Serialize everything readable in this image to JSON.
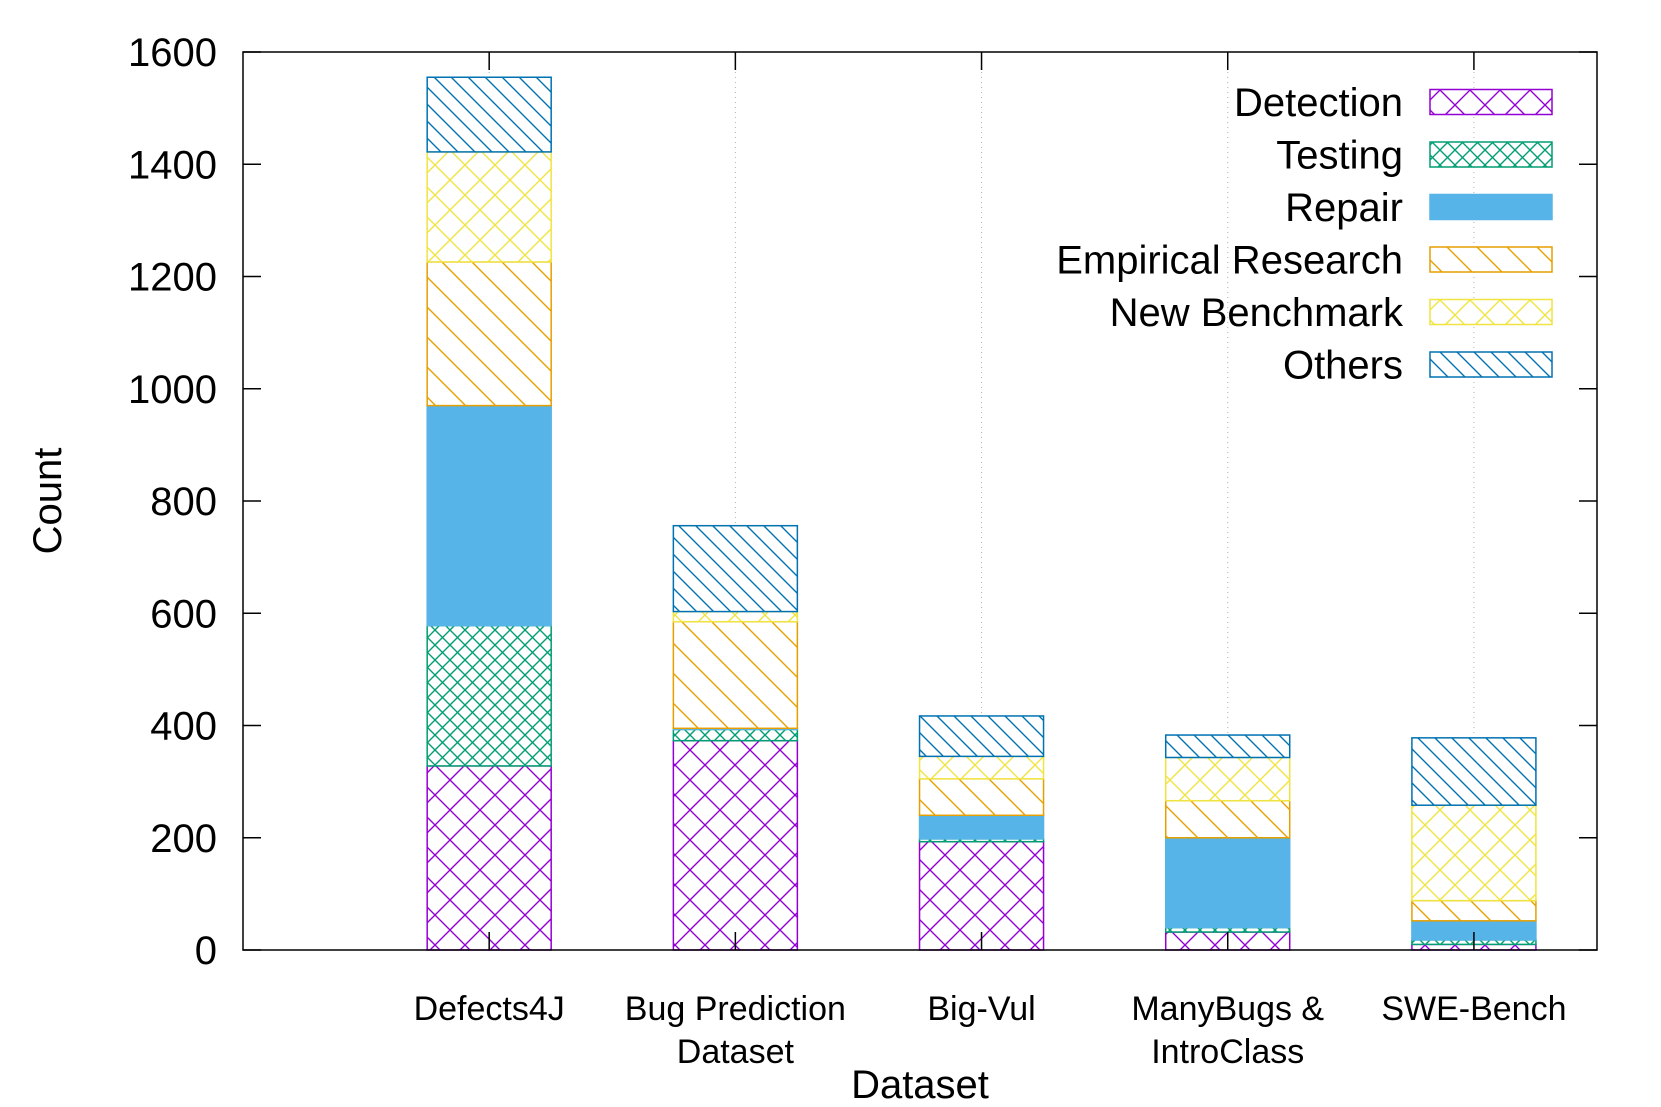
{
  "chart_data": {
    "type": "bar",
    "stacked": true,
    "title": "",
    "xlabel": "Dataset",
    "ylabel": "Count",
    "ylim": [
      0,
      1600
    ],
    "yticks": [
      0,
      200,
      400,
      600,
      800,
      1000,
      1200,
      1400,
      1600
    ],
    "grid": "x-only-dotted",
    "legend_position": "top-right",
    "categories": [
      [
        "Defects4J"
      ],
      [
        "Bug Prediction",
        "Dataset"
      ],
      [
        "Big-Vul"
      ],
      [
        "ManyBugs &",
        "IntroClass"
      ],
      [
        "SWE-Bench"
      ]
    ],
    "series": [
      {
        "name": "Detection",
        "color": "#9400d3",
        "pattern": "crosshatch",
        "values": [
          328,
          373,
          193,
          32,
          10
        ]
      },
      {
        "name": "Testing",
        "color": "#009e73",
        "pattern": "crosshatch-fine",
        "values": [
          250,
          20,
          5,
          8,
          8
        ]
      },
      {
        "name": "Repair",
        "color": "#56b4e9",
        "pattern": "solid",
        "values": [
          392,
          2,
          42,
          160,
          34
        ]
      },
      {
        "name": "Empirical Research",
        "color": "#e69f00",
        "pattern": "diagonal",
        "values": [
          256,
          190,
          65,
          66,
          36
        ]
      },
      {
        "name": "New Benchmark",
        "color": "#f0e442",
        "pattern": "crosshatch",
        "values": [
          196,
          18,
          40,
          77,
          170
        ]
      },
      {
        "name": "Others",
        "color": "#0072b2",
        "pattern": "diagonal-fine",
        "values": [
          133,
          153,
          72,
          40,
          120
        ]
      }
    ]
  }
}
